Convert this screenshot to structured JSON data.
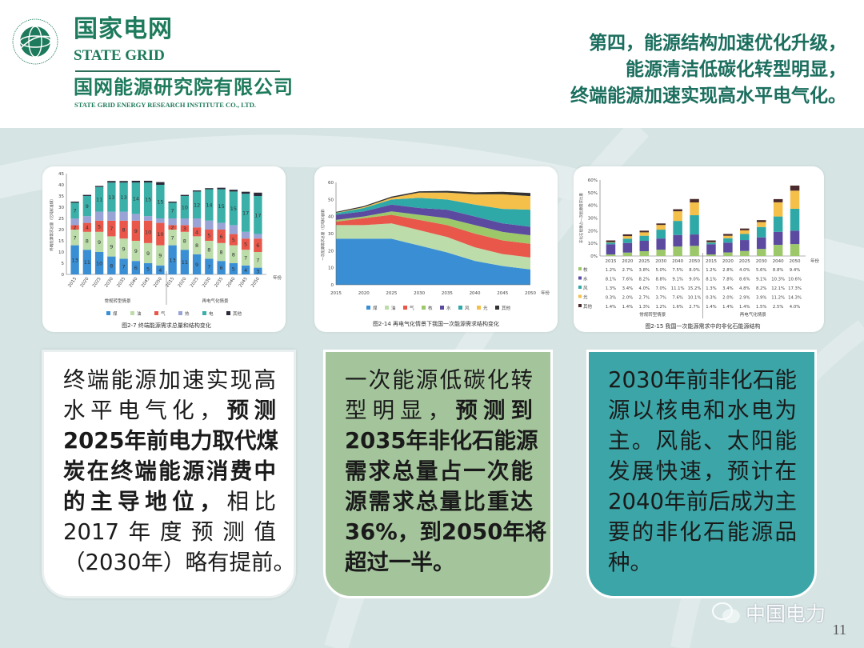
{
  "header": {
    "logo_ring_text": "国家电网公司 STATE GRID CORPORATION OF CHINA",
    "brand_cn": "国家电网",
    "brand_en": "STATE GRID",
    "institute_cn": "国网能源研究院有限公司",
    "institute_en": "STATE GRID ENERGY RESEARCH INSTITUTE CO., LTD.",
    "title_lines": [
      "第四，能源结构加速优化升级，",
      "能源清洁低碳化转型明显，",
      "终端能源加速实现高水平电气化。"
    ]
  },
  "colors": {
    "brand_green": "#1e7a5c",
    "box2_bg": "#a4c59c",
    "box3_bg": "#3ba5a7",
    "background": "#d6e4e4"
  },
  "chart_data": [
    {
      "type": "bar",
      "stacked": true,
      "caption": "图2-7 终端能源需求总量和结构变化",
      "ylabel": "终端能源需求总量（亿吨标准煤）",
      "xlabel": "年份",
      "ylim": [
        0,
        45
      ],
      "yticks": [
        0,
        5,
        10,
        15,
        20,
        25,
        30,
        35,
        40,
        45
      ],
      "groups": [
        {
          "label": "常规转型情景",
          "categories": [
            "2015",
            "2020",
            "2025",
            "2030",
            "2035",
            "2040",
            "2045",
            "2050"
          ]
        },
        {
          "label": "再电气化情景",
          "categories": [
            "2015",
            "2020",
            "2025",
            "2030",
            "2035",
            "2040",
            "2045",
            "2050"
          ]
        }
      ],
      "series": [
        {
          "name": "煤",
          "color": "#3a8fd4",
          "labeled": true,
          "values": [
            13,
            11,
            10,
            8,
            7,
            6,
            5,
            4,
            13,
            11,
            9,
            7,
            6,
            5,
            4,
            3
          ]
        },
        {
          "name": "油",
          "color": "#bcdcaa",
          "labeled": true,
          "values": [
            7,
            8,
            9,
            9,
            9,
            9,
            9,
            9,
            7,
            8,
            8,
            8,
            8,
            8,
            7,
            7
          ]
        },
        {
          "name": "气",
          "color": "#e8574a",
          "labeled": true,
          "values": [
            2,
            4,
            5,
            7,
            8,
            9,
            10,
            10,
            2,
            3,
            4,
            5,
            6,
            5,
            5,
            6
          ]
        },
        {
          "name": "热",
          "color": "#9aa3d6",
          "labeled": false,
          "values": [
            3,
            3,
            4,
            4,
            4,
            3,
            2,
            2,
            3,
            3,
            4,
            4,
            3,
            4,
            3,
            2
          ]
        },
        {
          "name": "电",
          "color": "#3bb0a8",
          "labeled": true,
          "values": [
            7,
            9,
            11,
            13,
            13,
            14,
            15,
            15,
            7,
            10,
            12,
            14,
            15,
            15,
            17,
            17
          ]
        },
        {
          "name": "其他",
          "color": "#2b2b3a",
          "labeled": false,
          "values": [
            0.5,
            0.5,
            0.5,
            0.7,
            0.7,
            0.8,
            0.8,
            1.2,
            0.5,
            0.5,
            0.5,
            0.5,
            0.7,
            0.8,
            0.9,
            1.5
          ]
        }
      ]
    },
    {
      "type": "area",
      "stacked": true,
      "caption": "图2-14 再电气化情景下我国一次能源需求结构变化",
      "ylabel": "一次能源需求总量（亿吨标准煤）",
      "xlabel": "年份",
      "ylim": [
        0,
        60
      ],
      "yticks": [
        0,
        10,
        20,
        30,
        40,
        50,
        60
      ],
      "x": [
        "2015",
        "2020",
        "2025",
        "2030",
        "2035",
        "2040",
        "2045",
        "2050"
      ],
      "series": [
        {
          "name": "煤",
          "color": "#3a8fd4",
          "values": [
            27,
            27,
            27,
            23,
            19,
            14,
            11,
            9
          ]
        },
        {
          "name": "油",
          "color": "#bcdcaa",
          "values": [
            8,
            8,
            9,
            9,
            9,
            8,
            7,
            7
          ]
        },
        {
          "name": "气",
          "color": "#e8574a",
          "values": [
            2,
            4,
            5,
            6,
            7,
            8,
            8,
            8
          ]
        },
        {
          "name": "核",
          "color": "#9cc86a",
          "values": [
            1,
            1,
            2,
            3,
            4,
            5,
            5,
            5
          ]
        },
        {
          "name": "水",
          "color": "#5b4aa0",
          "values": [
            3,
            3,
            4,
            4,
            5,
            5,
            5,
            5
          ]
        },
        {
          "name": "风",
          "color": "#2fa8a8",
          "values": [
            1,
            2,
            3,
            6,
            6,
            7,
            8.5,
            10
          ]
        },
        {
          "name": "光",
          "color": "#f5c04a",
          "values": [
            0.2,
            0.5,
            1,
            3,
            4,
            6,
            8.5,
            8
          ]
        },
        {
          "name": "其他",
          "color": "#333333",
          "values": [
            0.5,
            0.6,
            0.7,
            0.8,
            1,
            1.2,
            1.5,
            1.8
          ]
        }
      ]
    },
    {
      "type": "bar",
      "stacked": true,
      "caption": "图2-15 我国一次能源需求中的非化石能源结构",
      "ylabel": "非化石能源占一次能源需求比重",
      "xlabel": "年份",
      "ylim": [
        0,
        60
      ],
      "yticks": [
        "0%",
        "10%",
        "20%",
        "30%",
        "40%",
        "50%",
        "60%"
      ],
      "groups": [
        {
          "label": "常规转型情景",
          "categories": [
            "2015",
            "2020",
            "2025",
            "2030",
            "2040",
            "2050"
          ]
        },
        {
          "label": "再电气化情景",
          "categories": [
            "2015",
            "2020",
            "2025",
            "2030",
            "2040",
            "2050"
          ]
        }
      ],
      "series": [
        {
          "name": "核",
          "color": "#9cc86a",
          "values": [
            1.2,
            2.7,
            3.8,
            5.0,
            7.5,
            8.0,
            1.2,
            2.8,
            4.0,
            5.6,
            8.8,
            9.4
          ]
        },
        {
          "name": "水",
          "color": "#5b4aa0",
          "values": [
            8.1,
            7.6,
            8.2,
            8.8,
            9.1,
            9.0,
            8.1,
            7.8,
            8.6,
            9.1,
            10.3,
            10.6
          ]
        },
        {
          "name": "风",
          "color": "#2fa8a8",
          "values": [
            1.3,
            3.4,
            4.0,
            7.0,
            11.1,
            15.2,
            1.3,
            3.4,
            4.8,
            8.2,
            12.1,
            17.3
          ]
        },
        {
          "name": "光",
          "color": "#f5c04a",
          "values": [
            0.3,
            2.0,
            2.7,
            3.7,
            7.6,
            10.1,
            0.3,
            2.0,
            2.9,
            3.9,
            11.2,
            14.3
          ]
        },
        {
          "name": "其他",
          "color": "#4a2a2a",
          "values": [
            1.4,
            1.4,
            1.3,
            1.2,
            1.6,
            2.7,
            1.4,
            1.4,
            1.4,
            1.5,
            2.5,
            4.0
          ]
        }
      ]
    }
  ],
  "boxes": [
    {
      "lines": [
        [
          {
            "t": "终端能源加速实现高",
            "b": false
          }
        ],
        [
          {
            "t": "水平电气化，",
            "b": false
          },
          {
            "t": "预测",
            "b": true
          }
        ],
        [
          {
            "t": "2025年前电力取代煤",
            "b": true
          }
        ],
        [
          {
            "t": "炭在终端能源消费中",
            "b": true
          }
        ],
        [
          {
            "t": "的主导地位，",
            "b": true
          },
          {
            "t": "相比",
            "b": false
          }
        ],
        [
          {
            "t": "2017年度预测值",
            "b": false
          }
        ],
        [
          {
            "t": "（2030年）略有提前。",
            "b": false
          }
        ]
      ]
    },
    {
      "lines": [
        [
          {
            "t": "一次能源低碳化转",
            "b": false
          }
        ],
        [
          {
            "t": "型明显，",
            "b": false
          },
          {
            "t": "预测到",
            "b": true
          }
        ],
        [
          {
            "t": "2035年非化石能源",
            "b": true
          }
        ],
        [
          {
            "t": "需求总量占一次能",
            "b": true
          }
        ],
        [
          {
            "t": "源需求总量比重达",
            "b": true
          }
        ],
        [
          {
            "t": "36%，到2050年将",
            "b": true
          }
        ],
        [
          {
            "t": "超过一半。",
            "b": true
          }
        ]
      ]
    },
    {
      "lines": [
        [
          {
            "t": "2030年前非化石能",
            "b": false
          }
        ],
        [
          {
            "t": "源以核电和水电为",
            "b": false
          }
        ],
        [
          {
            "t": "主。风能、太阳能",
            "b": false
          }
        ],
        [
          {
            "t": "发展快速，预计在",
            "b": false
          }
        ],
        [
          {
            "t": "2040年前后成为主",
            "b": false
          }
        ],
        [
          {
            "t": "要的非化石能源品",
            "b": false
          }
        ],
        [
          {
            "t": "种。",
            "b": false
          }
        ]
      ]
    }
  ],
  "footer": {
    "watermark": "中国电力",
    "page_number": "11"
  }
}
